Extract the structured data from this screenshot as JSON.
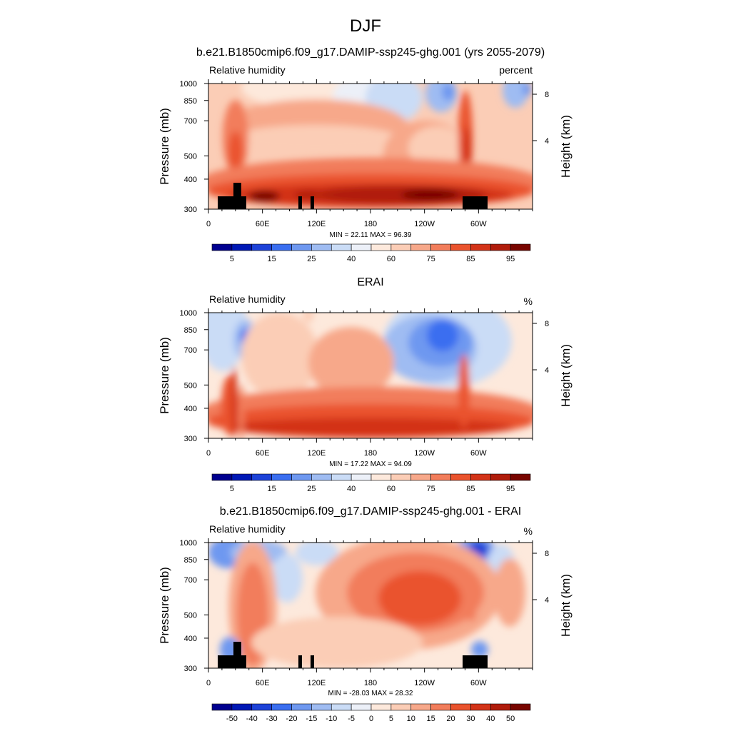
{
  "figure": {
    "main_title": "DJF",
    "x_ticks": [
      "0",
      "60E",
      "120E",
      "180",
      "120W",
      "60W"
    ],
    "y_left_label": "Pressure (mb)",
    "y_right_label": "Height (km)",
    "y_ticks": [
      "300",
      "400",
      "500",
      "700",
      "850",
      "1000"
    ],
    "y_right_ticks": [
      "8",
      "4"
    ],
    "left_label": "Relative humidity"
  },
  "chart_data": [
    {
      "type": "heatmap",
      "title": "b.e21.B1850cmip6.f09_g17.DAMIP-ssp245-ghg.001 (yrs 2055-2079)",
      "left_label": "Relative humidity",
      "units": "percent",
      "stats": "MIN =  22.11  MAX =  96.39",
      "x_range": [
        0,
        360
      ],
      "y_range_mb": [
        1000,
        300
      ],
      "colorbar_labels": [
        "5",
        "15",
        "25",
        "40",
        "60",
        "75",
        "85",
        "95"
      ]
    },
    {
      "type": "heatmap",
      "title": "ERAI",
      "left_label": "Relative humidity",
      "units": "%",
      "stats": "MIN =  17.22  MAX =  94.09",
      "x_range": [
        0,
        360
      ],
      "y_range_mb": [
        1000,
        300
      ],
      "colorbar_labels": [
        "5",
        "15",
        "25",
        "40",
        "60",
        "75",
        "85",
        "95"
      ]
    },
    {
      "type": "heatmap",
      "title": "b.e21.B1850cmip6.f09_g17.DAMIP-ssp245-ghg.001 - ERAI",
      "left_label": "Relative humidity",
      "units": "%",
      "stats": "MIN = -28.03  MAX =  28.32",
      "x_range": [
        0,
        360
      ],
      "y_range_mb": [
        1000,
        300
      ],
      "colorbar_labels": [
        "-50",
        "-40",
        "-30",
        "-20",
        "-15",
        "-10",
        "-5",
        "0",
        "5",
        "10",
        "15",
        "20",
        "30",
        "40",
        "50"
      ]
    }
  ],
  "colors": {
    "palette": [
      "#00008f",
      "#0018b5",
      "#1d42d8",
      "#3a6ef0",
      "#6e98f0",
      "#9fbcf2",
      "#cadcf6",
      "#ecf0f8",
      "#fde9dc",
      "#fbcdb6",
      "#f7a88a",
      "#f27d5b",
      "#ea532d",
      "#d33318",
      "#b01c0b",
      "#780500"
    ],
    "terrain": "#000000"
  }
}
